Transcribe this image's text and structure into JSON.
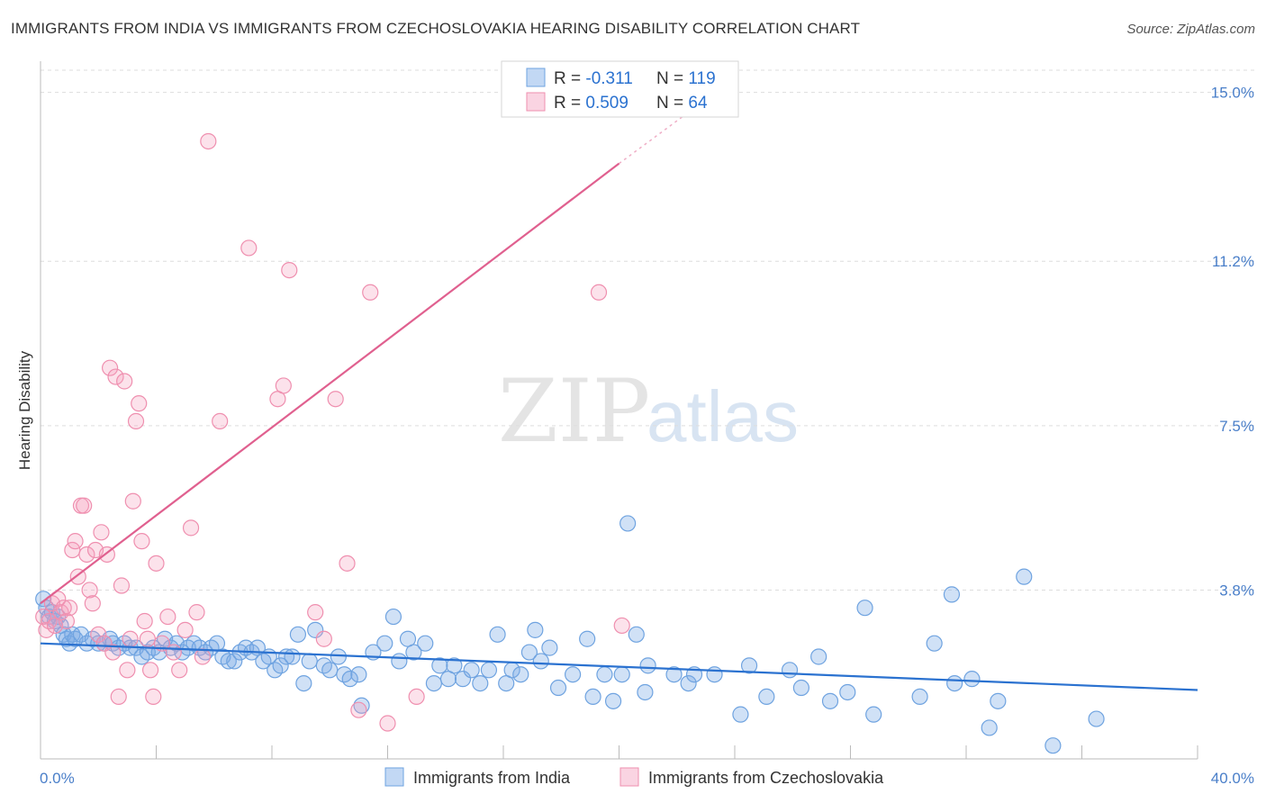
{
  "header": {
    "title": "IMMIGRANTS FROM INDIA VS IMMIGRANTS FROM CZECHOSLOVAKIA HEARING DISABILITY CORRELATION CHART",
    "source": "Source: ZipAtlas.com"
  },
  "watermark": {
    "zip": "ZIP",
    "atlas": "atlas"
  },
  "colors": {
    "blue": "#6fa3e0",
    "blue_fill": "rgba(120,168,230,0.35)",
    "blue_line": "#2b72d0",
    "pink": "#ef8faf",
    "pink_fill": "rgba(244,160,190,0.30)",
    "pink_line": "#e0608f",
    "tick_text": "#4a7fc9",
    "grid": "#dddddd"
  },
  "legend_top": {
    "rows": [
      {
        "r_label": "R = ",
        "r_value": "-0.311",
        "n_label": "N = ",
        "n_value": "119",
        "color": "blue"
      },
      {
        "r_label": "R = ",
        "r_value": "0.509",
        "n_label": "N = ",
        "n_value": "64",
        "color": "pink"
      }
    ]
  },
  "chart_data": {
    "type": "scatter",
    "title": "IMMIGRANTS FROM INDIA VS IMMIGRANTS FROM CZECHOSLOVAKIA HEARING DISABILITY CORRELATION CHART",
    "xlabel": "",
    "ylabel": "Hearing Disability",
    "xlim": [
      0,
      40
    ],
    "ylim": [
      0,
      15.5
    ],
    "x_tick_labels": [
      {
        "value": 0,
        "label": "0.0%"
      },
      {
        "value": 40,
        "label": "40.0%"
      }
    ],
    "y_ticks": [
      {
        "value": 3.8,
        "label": "3.8%"
      },
      {
        "value": 7.5,
        "label": "7.5%"
      },
      {
        "value": 11.2,
        "label": "11.2%"
      },
      {
        "value": 15.0,
        "label": "15.0%"
      }
    ],
    "grid": "horizontal dashed",
    "legend_position": "bottom-center",
    "series": [
      {
        "name": "Immigrants from India",
        "color": "blue",
        "trend": {
          "x0": 0,
          "y0": 2.6,
          "x1": 40,
          "y1": 1.55
        },
        "points": [
          [
            0.1,
            3.6
          ],
          [
            0.2,
            3.4
          ],
          [
            0.3,
            3.2
          ],
          [
            0.4,
            3.3
          ],
          [
            0.5,
            3.1
          ],
          [
            0.6,
            3.2
          ],
          [
            0.7,
            3.0
          ],
          [
            0.8,
            2.8
          ],
          [
            0.9,
            2.7
          ],
          [
            1.0,
            2.6
          ],
          [
            1.1,
            2.8
          ],
          [
            1.2,
            2.7
          ],
          [
            1.4,
            2.8
          ],
          [
            1.6,
            2.6
          ],
          [
            1.8,
            2.7
          ],
          [
            2.0,
            2.6
          ],
          [
            2.2,
            2.6
          ],
          [
            2.4,
            2.7
          ],
          [
            2.5,
            2.6
          ],
          [
            2.7,
            2.5
          ],
          [
            2.9,
            2.6
          ],
          [
            3.1,
            2.5
          ],
          [
            3.3,
            2.5
          ],
          [
            3.5,
            2.3
          ],
          [
            3.7,
            2.4
          ],
          [
            3.9,
            2.5
          ],
          [
            4.1,
            2.4
          ],
          [
            4.3,
            2.7
          ],
          [
            4.5,
            2.5
          ],
          [
            4.7,
            2.6
          ],
          [
            4.9,
            2.4
          ],
          [
            5.1,
            2.5
          ],
          [
            5.3,
            2.6
          ],
          [
            5.5,
            2.5
          ],
          [
            5.7,
            2.4
          ],
          [
            5.9,
            2.5
          ],
          [
            6.1,
            2.6
          ],
          [
            6.3,
            2.3
          ],
          [
            6.5,
            2.2
          ],
          [
            6.7,
            2.2
          ],
          [
            6.9,
            2.4
          ],
          [
            7.1,
            2.5
          ],
          [
            7.3,
            2.4
          ],
          [
            7.5,
            2.5
          ],
          [
            7.7,
            2.2
          ],
          [
            7.9,
            2.3
          ],
          [
            8.1,
            2.0
          ],
          [
            8.3,
            2.1
          ],
          [
            8.5,
            2.3
          ],
          [
            8.7,
            2.3
          ],
          [
            8.9,
            2.8
          ],
          [
            9.1,
            1.7
          ],
          [
            9.3,
            2.2
          ],
          [
            9.5,
            2.9
          ],
          [
            9.8,
            2.1
          ],
          [
            10.0,
            2.0
          ],
          [
            10.3,
            2.3
          ],
          [
            10.5,
            1.9
          ],
          [
            10.7,
            1.8
          ],
          [
            11.0,
            1.9
          ],
          [
            11.1,
            1.2
          ],
          [
            11.5,
            2.4
          ],
          [
            11.9,
            2.6
          ],
          [
            12.2,
            3.2
          ],
          [
            12.4,
            2.2
          ],
          [
            12.7,
            2.7
          ],
          [
            12.9,
            2.4
          ],
          [
            13.3,
            2.6
          ],
          [
            13.6,
            1.7
          ],
          [
            13.8,
            2.1
          ],
          [
            14.1,
            1.8
          ],
          [
            14.3,
            2.1
          ],
          [
            14.6,
            1.8
          ],
          [
            14.9,
            2.0
          ],
          [
            15.2,
            1.7
          ],
          [
            15.5,
            2.0
          ],
          [
            15.8,
            2.8
          ],
          [
            16.1,
            1.7
          ],
          [
            16.3,
            2.0
          ],
          [
            16.6,
            1.9
          ],
          [
            16.9,
            2.4
          ],
          [
            17.1,
            2.9
          ],
          [
            17.3,
            2.2
          ],
          [
            17.6,
            2.5
          ],
          [
            17.9,
            1.6
          ],
          [
            18.4,
            1.9
          ],
          [
            18.9,
            2.7
          ],
          [
            19.1,
            1.4
          ],
          [
            19.5,
            1.9
          ],
          [
            19.8,
            1.3
          ],
          [
            20.1,
            1.9
          ],
          [
            20.3,
            5.3
          ],
          [
            20.6,
            2.8
          ],
          [
            20.9,
            1.5
          ],
          [
            21.0,
            2.1
          ],
          [
            21.9,
            1.9
          ],
          [
            22.4,
            1.7
          ],
          [
            22.6,
            1.9
          ],
          [
            23.3,
            1.9
          ],
          [
            24.2,
            1.0
          ],
          [
            24.5,
            2.1
          ],
          [
            25.1,
            1.4
          ],
          [
            25.9,
            2.0
          ],
          [
            26.3,
            1.6
          ],
          [
            26.9,
            2.3
          ],
          [
            27.3,
            1.3
          ],
          [
            27.9,
            1.5
          ],
          [
            28.5,
            3.4
          ],
          [
            28.8,
            1.0
          ],
          [
            30.4,
            1.4
          ],
          [
            30.9,
            2.6
          ],
          [
            31.5,
            3.7
          ],
          [
            31.6,
            1.7
          ],
          [
            32.2,
            1.8
          ],
          [
            32.8,
            0.7
          ],
          [
            33.1,
            1.3
          ],
          [
            34.0,
            4.1
          ],
          [
            35.0,
            0.3
          ],
          [
            36.5,
            0.9
          ]
        ]
      },
      {
        "name": "Immigrants from Czechoslovakia",
        "color": "pink",
        "trend": {
          "x0": 0,
          "y0": 3.5,
          "x1": 20,
          "y1": 13.4,
          "dashed_to": {
            "x": 22.5,
            "y": 14.6
          }
        },
        "points": [
          [
            0.1,
            3.2
          ],
          [
            0.2,
            2.9
          ],
          [
            0.3,
            3.1
          ],
          [
            0.4,
            3.5
          ],
          [
            0.5,
            3.0
          ],
          [
            0.6,
            3.6
          ],
          [
            0.7,
            3.3
          ],
          [
            0.8,
            3.4
          ],
          [
            0.9,
            3.1
          ],
          [
            1.0,
            3.4
          ],
          [
            1.1,
            4.7
          ],
          [
            1.2,
            4.9
          ],
          [
            1.3,
            4.1
          ],
          [
            1.4,
            5.7
          ],
          [
            1.5,
            5.7
          ],
          [
            1.6,
            4.6
          ],
          [
            1.7,
            3.8
          ],
          [
            1.8,
            3.5
          ],
          [
            1.9,
            4.7
          ],
          [
            2.0,
            2.8
          ],
          [
            2.1,
            5.1
          ],
          [
            2.2,
            2.6
          ],
          [
            2.3,
            4.6
          ],
          [
            2.4,
            8.8
          ],
          [
            2.5,
            2.4
          ],
          [
            2.6,
            8.6
          ],
          [
            2.7,
            1.4
          ],
          [
            2.8,
            3.9
          ],
          [
            2.9,
            8.5
          ],
          [
            3.0,
            2.0
          ],
          [
            3.1,
            2.7
          ],
          [
            3.2,
            5.8
          ],
          [
            3.3,
            7.6
          ],
          [
            3.4,
            8.0
          ],
          [
            3.5,
            4.9
          ],
          [
            3.6,
            3.1
          ],
          [
            3.7,
            2.7
          ],
          [
            3.8,
            2.0
          ],
          [
            3.9,
            1.4
          ],
          [
            4.0,
            4.4
          ],
          [
            4.2,
            2.6
          ],
          [
            4.4,
            3.2
          ],
          [
            4.6,
            2.4
          ],
          [
            4.8,
            2.0
          ],
          [
            5.0,
            2.9
          ],
          [
            5.2,
            5.2
          ],
          [
            5.4,
            3.3
          ],
          [
            5.6,
            2.3
          ],
          [
            5.8,
            13.9
          ],
          [
            6.2,
            7.6
          ],
          [
            7.2,
            11.5
          ],
          [
            8.2,
            8.1
          ],
          [
            8.4,
            8.4
          ],
          [
            8.6,
            11.0
          ],
          [
            9.5,
            3.3
          ],
          [
            9.8,
            2.7
          ],
          [
            10.2,
            8.1
          ],
          [
            10.6,
            4.4
          ],
          [
            11.0,
            1.1
          ],
          [
            11.4,
            10.5
          ],
          [
            12.0,
            0.8
          ],
          [
            13.0,
            1.4
          ],
          [
            19.3,
            10.5
          ],
          [
            20.1,
            3.0
          ]
        ]
      }
    ]
  },
  "legend_bottom": [
    {
      "label": "Immigrants from India",
      "color": "blue"
    },
    {
      "label": "Immigrants from Czechoslovakia",
      "color": "pink"
    }
  ]
}
